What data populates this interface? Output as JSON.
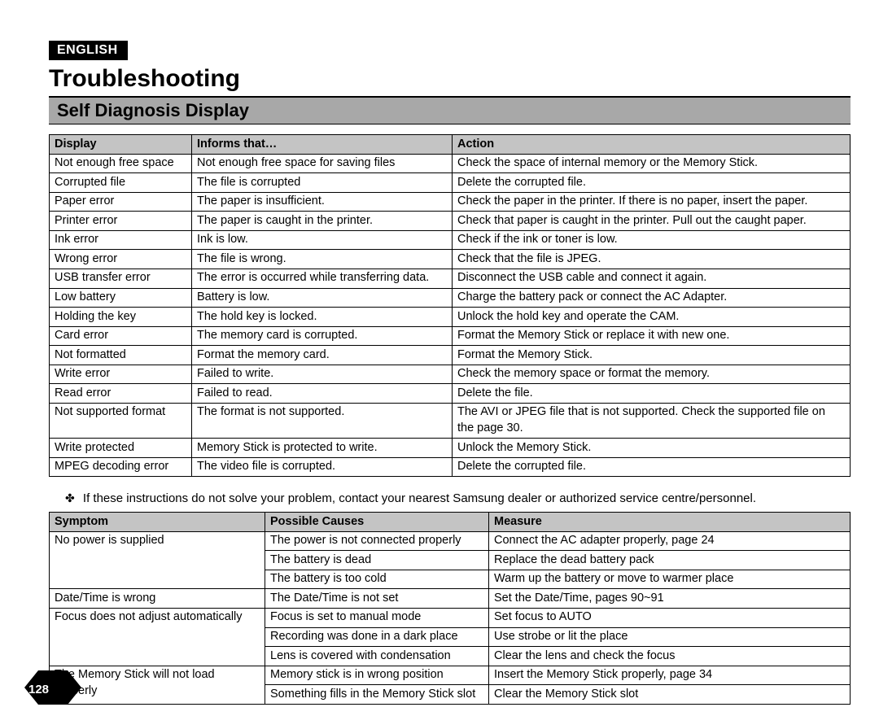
{
  "lang_badge": "ENGLISH",
  "title": "Troubleshooting",
  "subtitle": "Self Diagnosis Display",
  "table1": {
    "headers": [
      "Display",
      "Informs that…",
      "Action"
    ],
    "rows": [
      [
        "Not enough free space",
        "Not enough free space for saving files",
        "Check the space of internal memory or the Memory Stick."
      ],
      [
        "Corrupted file",
        "The file is corrupted",
        "Delete the corrupted file."
      ],
      [
        "Paper error",
        "The paper is insufficient.",
        "Check the paper in the printer. If there is no paper, insert the paper."
      ],
      [
        "Printer error",
        "The paper is caught in the printer.",
        "Check that paper is caught in the printer. Pull out the caught paper."
      ],
      [
        "Ink error",
        "Ink is low.",
        "Check if the ink or toner is low."
      ],
      [
        "Wrong error",
        "The file is wrong.",
        "Check that the file is JPEG."
      ],
      [
        "USB transfer error",
        "The error is occurred while transferring data.",
        "Disconnect the USB cable and connect it again."
      ],
      [
        "Low battery",
        "Battery is low.",
        "Charge the battery pack or connect the AC Adapter."
      ],
      [
        "Holding the key",
        "The hold key is locked.",
        "Unlock the hold key and operate the CAM."
      ],
      [
        "Card error",
        "The memory card is corrupted.",
        "Format the Memory Stick or replace it with new one."
      ],
      [
        "Not formatted",
        "Format the memory card.",
        "Format the Memory Stick."
      ],
      [
        "Write error",
        "Failed to write.",
        "Check the memory space or format the memory."
      ],
      [
        "Read error",
        "Failed to read.",
        "Delete the file."
      ],
      [
        "Not supported format",
        "The format is not supported.",
        "The AVI or JPEG file that is not supported. Check the supported file on the page 30."
      ],
      [
        "Write protected",
        "Memory Stick is protected to write.",
        "Unlock the Memory Stick."
      ],
      [
        "MPEG decoding error",
        "The video file is corrupted.",
        "Delete the corrupted file."
      ]
    ]
  },
  "note_bullet": "✤",
  "note_text": "If these instructions do not solve your problem, contact your nearest Samsung dealer or authorized service centre/personnel.",
  "table2": {
    "headers": [
      "Symptom",
      "Possible Causes",
      "Measure"
    ],
    "groups": [
      {
        "symptom": "No power is supplied",
        "rows": [
          [
            "The power is not connected properly",
            "Connect the AC adapter properly, page 24"
          ],
          [
            "The battery is dead",
            "Replace the dead battery pack"
          ],
          [
            "The battery is too cold",
            "Warm up the battery or move to warmer place"
          ]
        ]
      },
      {
        "symptom": "Date/Time is wrong",
        "rows": [
          [
            "The Date/Time is not set",
            "Set the Date/Time, pages 90~91"
          ]
        ]
      },
      {
        "symptom": "Focus does not adjust automatically",
        "rows": [
          [
            "Focus is set to manual mode",
            "Set focus to AUTO"
          ],
          [
            "Recording was done in a dark place",
            "Use strobe or lit the place"
          ],
          [
            "Lens is covered with condensation",
            "Clear the lens and check the focus"
          ]
        ]
      },
      {
        "symptom": "The Memory Stick will not load properly",
        "rows": [
          [
            "Memory stick is in wrong position",
            "Insert the Memory Stick properly, page 34"
          ],
          [
            "Something fills in the Memory Stick slot",
            "Clear the Memory Stick slot"
          ]
        ]
      }
    ]
  },
  "page_number": "128"
}
